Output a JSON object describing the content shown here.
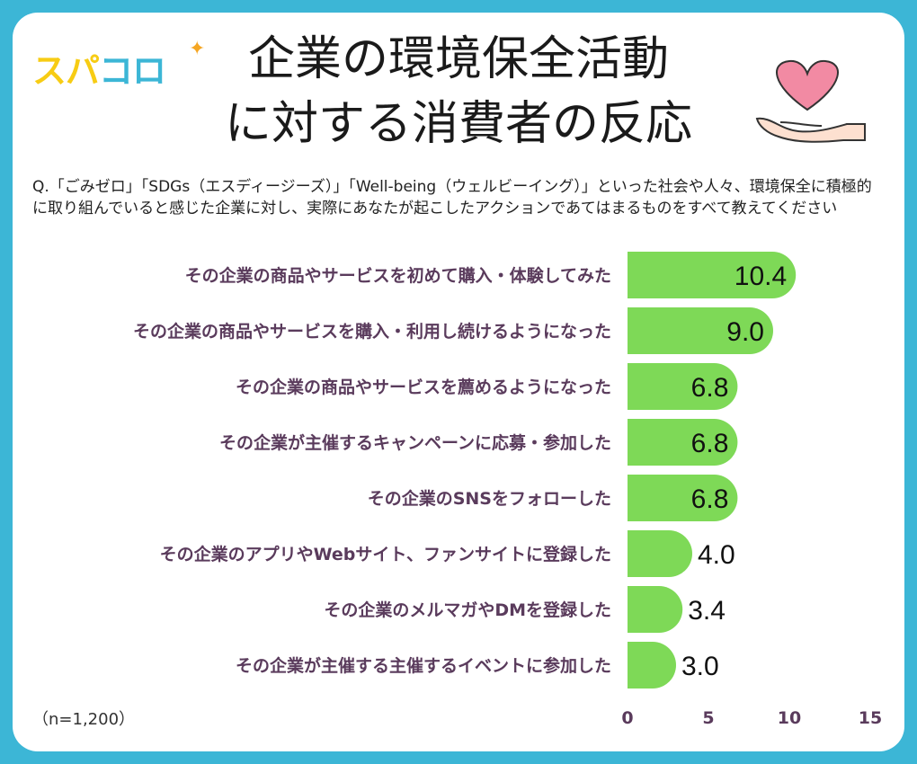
{
  "logo": {
    "part1": "スパ",
    "part2": "コロ"
  },
  "title_lines": [
    "企業の環境保全活動",
    "に対する消費者の反応"
  ],
  "question": "Q.「ごみゼロ」「SDGs（エスディージーズ）」「Well-being（ウェルビーイング）」といった社会や人々、環境保全に積極的に取り組んでいると感じた企業に対し、実際にあなたが起こしたアクションであてはまるものをすべて教えてください",
  "sample_note": "（n=1,200）",
  "colors": {
    "bar": "#7ed957",
    "label": "#5a3b5c",
    "frame": "#3cb6d6"
  },
  "chart_data": {
    "type": "bar",
    "orientation": "horizontal",
    "categories": [
      "その企業の商品やサービスを初めて購入・体験してみた",
      "その企業の商品やサービスを購入・利用し続けるようになった",
      "その企業の商品やサービスを薦めるようになった",
      "その企業が主催するキャンペーンに応募・参加した",
      "その企業のSNSをフォローした",
      "その企業のアプリやWebサイト、ファンサイトに登録した",
      "その企業のメルマガやDMを登録した",
      "その企業が主催する主催するイベントに参加した"
    ],
    "values": [
      10.4,
      9.0,
      6.8,
      6.8,
      6.8,
      4.0,
      3.4,
      3.0
    ],
    "value_labels": [
      "10.4",
      "9.0",
      "6.8",
      "6.8",
      "6.8",
      "4.0",
      "3.4",
      "3.0"
    ],
    "xlim": [
      0,
      15
    ],
    "xticks": [
      "0",
      "5",
      "10",
      "15"
    ],
    "grid": false
  }
}
